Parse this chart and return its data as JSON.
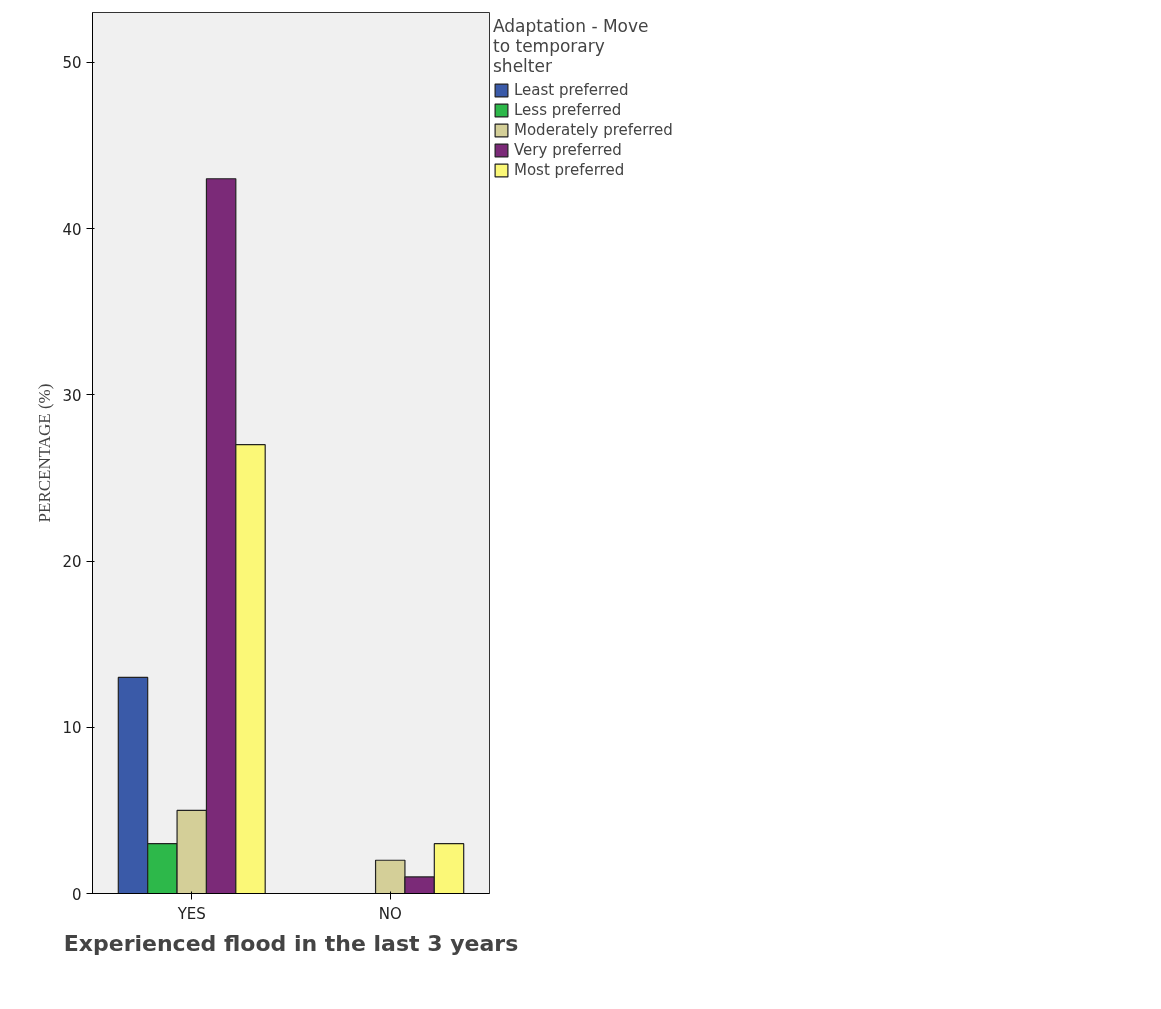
{
  "chart_data": {
    "type": "bar",
    "xlabel": "Experienced flood in the last 3 years",
    "ylabel": "PERCENTAGE (%)",
    "legend_title": "Adaptation - Move to temporary shelter",
    "categories": [
      "YES",
      "NO"
    ],
    "series": [
      {
        "name": "Least preferred",
        "color": "#3a5aa8",
        "values": [
          13,
          null
        ]
      },
      {
        "name": "Less preferred",
        "color": "#2db84a",
        "values": [
          3,
          null
        ]
      },
      {
        "name": "Moderately preferred",
        "color": "#d4cf98",
        "values": [
          5,
          2
        ]
      },
      {
        "name": "Very preferred",
        "color": "#7b2a78",
        "values": [
          43,
          1
        ]
      },
      {
        "name": "Most preferred",
        "color": "#fbf877",
        "values": [
          27,
          3
        ]
      }
    ],
    "ylim": [
      0,
      53
    ],
    "yticks": [
      0,
      10,
      20,
      30,
      40,
      50
    ],
    "grid": false,
    "legend": "top right"
  }
}
